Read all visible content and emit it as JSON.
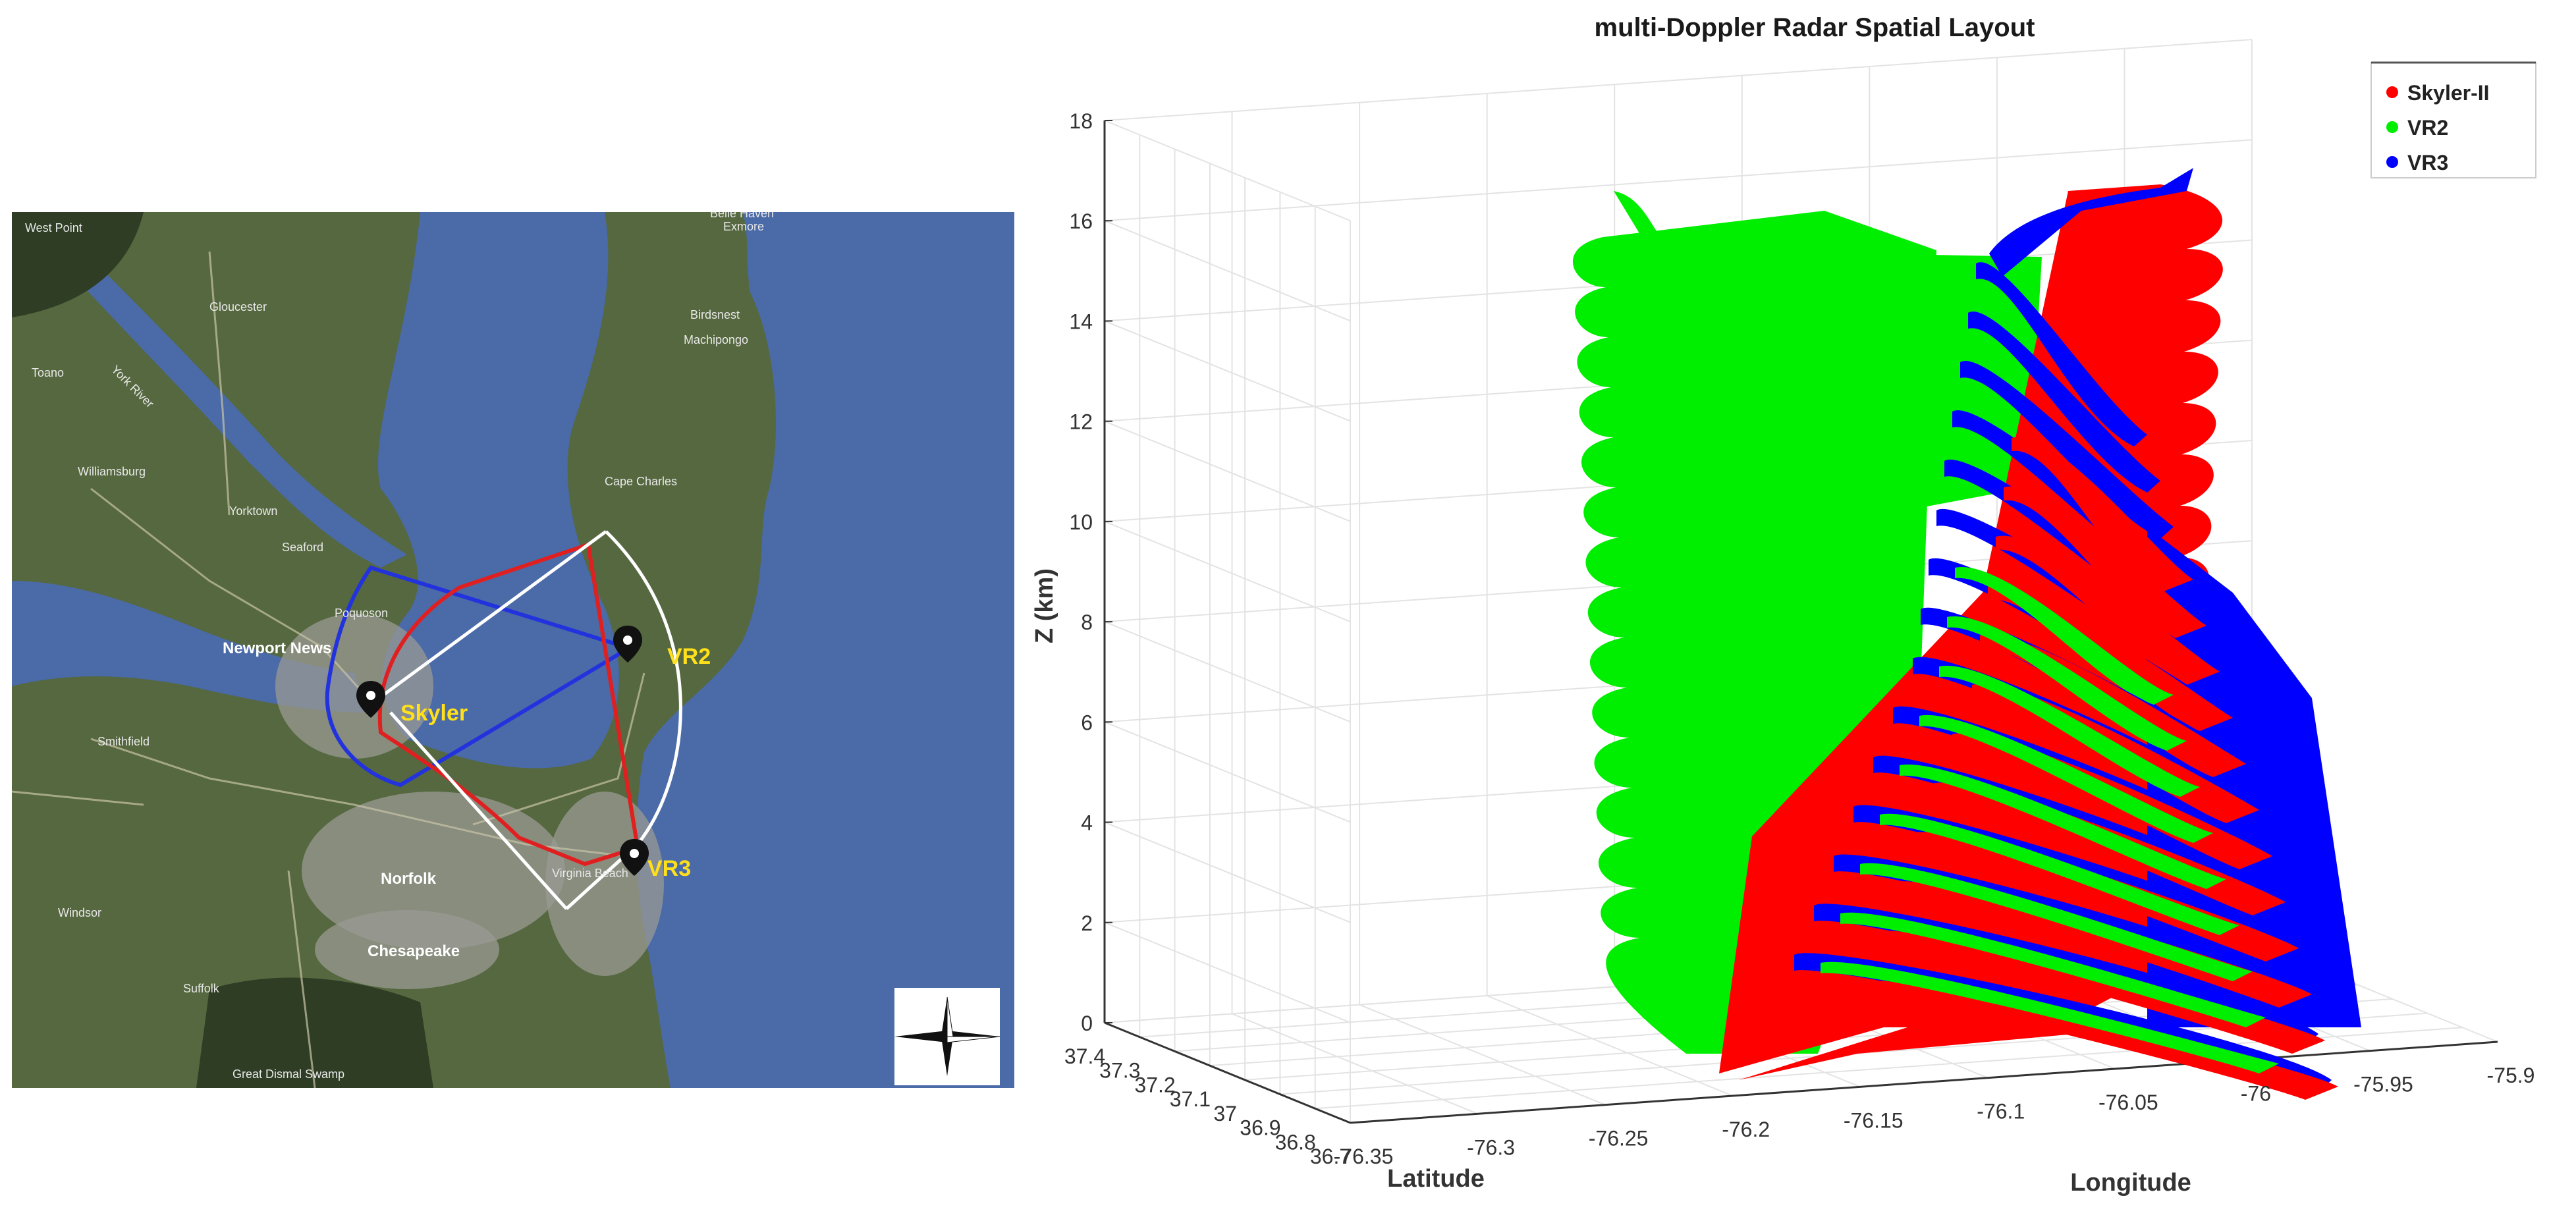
{
  "map": {
    "colors": {
      "water": "#4a6aa8",
      "land": "#56683f",
      "urban": "#9a9a94",
      "forest": "#2e3d24",
      "skyler_outline": "#e02020",
      "vr3_outline": "#2233dd",
      "baseline": "#ffffff",
      "label": "#ffe01a"
    },
    "radar_labels": [
      "Skyler",
      "VR2",
      "VR3"
    ],
    "place_labels": [
      "West Point",
      "Gloucester",
      "Toano",
      "York River",
      "Williamsburg",
      "Yorktown",
      "Seaford",
      "Poquoson",
      "Newport News",
      "Smithfield",
      "Norfolk",
      "Virginia Beach",
      "Chesapeake",
      "Suffolk",
      "Windsor",
      "Great Dismal Swamp",
      "Cape Charles",
      "Birdsnest",
      "Machipongo",
      "Exmore",
      "Belle Haven"
    ],
    "compass_icon": "compass-rose-icon",
    "pin_icon": "map-pin-icon"
  },
  "chart_data": {
    "type": "scatter",
    "title": "multi-Doppler Radar Spatial Layout",
    "xlabel": "Longitude",
    "ylabel": "Latitude",
    "zlabel": "Z (km)",
    "xlim": [
      -76.35,
      -75.9
    ],
    "ylim": [
      36.7,
      37.4
    ],
    "zlim": [
      0,
      18
    ],
    "x_ticks": [
      "-76.35",
      "-76.3",
      "-76.25",
      "-76.2",
      "-76.15",
      "-76.1",
      "-76.05",
      "-76",
      "-75.95",
      "-75.9"
    ],
    "y_ticks": [
      "36.7",
      "36.8",
      "36.9",
      "37",
      "37.1",
      "37.2",
      "37.3",
      "37.4"
    ],
    "z_ticks": [
      "0",
      "2",
      "4",
      "6",
      "8",
      "10",
      "12",
      "14",
      "16",
      "18"
    ],
    "grid": true,
    "legend_position": "top-right",
    "series": [
      {
        "name": "Skyler-II",
        "color": "#ff0000"
      },
      {
        "name": "VR2",
        "color": "#00ee00"
      },
      {
        "name": "VR3",
        "color": "#0000ff"
      }
    ]
  }
}
